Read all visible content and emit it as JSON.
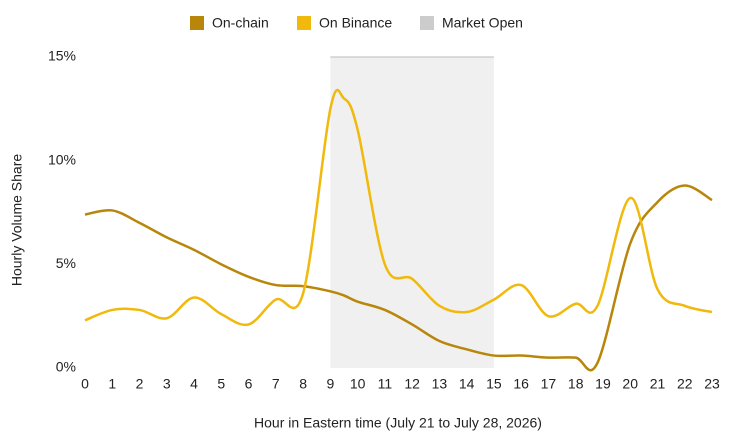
{
  "chart_data": {
    "type": "line",
    "x_label": "Hour in Eastern time (July 21 to July 28, 2026)",
    "y_label": "Hourly Volume Share",
    "x": [
      0,
      1,
      2,
      3,
      4,
      5,
      6,
      7,
      8,
      9,
      9.5,
      10,
      11,
      12,
      13,
      14,
      15,
      16,
      17,
      18,
      18.8,
      20,
      21,
      22,
      23
    ],
    "series": [
      {
        "name": "On-chain",
        "color": "#b8860b",
        "values": [
          7.4,
          7.6,
          7.0,
          6.3,
          5.7,
          5.0,
          4.4,
          4.0,
          3.95,
          3.7,
          3.5,
          3.2,
          2.8,
          2.1,
          1.3,
          0.9,
          0.6,
          0.6,
          0.5,
          0.5,
          0.25,
          6.0,
          8.0,
          8.8,
          8.1
        ]
      },
      {
        "name": "On Binance",
        "color": "#f0b90b",
        "values": [
          2.3,
          2.8,
          2.8,
          2.4,
          3.4,
          2.6,
          2.1,
          3.3,
          3.6,
          12.5,
          13.0,
          11.5,
          5.0,
          4.3,
          3.0,
          2.7,
          3.3,
          4.0,
          2.5,
          3.1,
          3.0,
          8.2,
          3.8,
          3.0,
          2.7
        ]
      }
    ],
    "bands": [
      {
        "name": "Market Open",
        "color": "#cccccc",
        "x": [
          9,
          15
        ]
      }
    ],
    "xlim": [
      0,
      23
    ],
    "ylim": [
      0,
      15
    ],
    "xticks": [
      0,
      1,
      2,
      3,
      4,
      5,
      6,
      7,
      8,
      9,
      10,
      11,
      12,
      13,
      14,
      15,
      16,
      17,
      18,
      19,
      20,
      21,
      22,
      23
    ],
    "yticks": [
      {
        "value": 0,
        "label": "0%"
      },
      {
        "value": 5,
        "label": "5%"
      },
      {
        "value": 10,
        "label": "10%"
      },
      {
        "value": 15,
        "label": "15%"
      }
    ]
  }
}
